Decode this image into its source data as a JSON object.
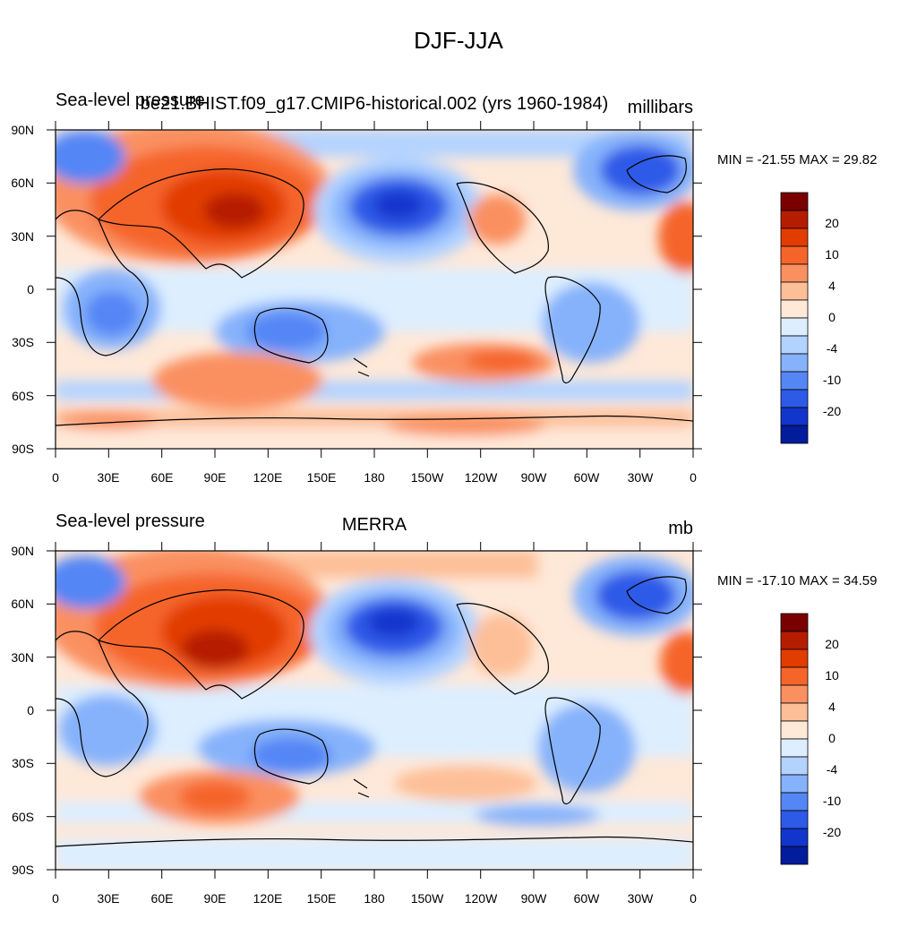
{
  "figure": {
    "title": "DJF-JJA"
  },
  "colorbar": {
    "colors": [
      "#7a0000",
      "#b51d00",
      "#e23c00",
      "#f5652a",
      "#fa9060",
      "#fdbf98",
      "#fee8d8",
      "#dceeff",
      "#b3d3ff",
      "#86b2fb",
      "#5586f5",
      "#2e5ae8",
      "#1236cc",
      "#021c9b"
    ],
    "labels": [
      "20",
      "10",
      "4",
      "0",
      "-4",
      "-10",
      "-20"
    ]
  },
  "axes": {
    "lat_labels": [
      "90N",
      "60N",
      "30N",
      "0",
      "30S",
      "60S",
      "90S"
    ],
    "lon_labels": [
      "0",
      "30E",
      "60E",
      "90E",
      "120E",
      "150E",
      "180",
      "150W",
      "120W",
      "90W",
      "60W",
      "30W",
      "0"
    ]
  },
  "panels": [
    {
      "left_label": "Sea-level pressure",
      "center_label": "be21.BHIST.f09_g17.CMIP6-historical.002 (yrs 1960-1984)",
      "right_label": "millibars",
      "minmax": "MIN = -21.55 MAX =  29.82",
      "field_summary": {
        "min": -21.55,
        "max": 29.82,
        "features": [
          {
            "region": "Asia (Siberian high)",
            "value": 24
          },
          {
            "region": "North Pacific (Aleutian low)",
            "value": -16
          },
          {
            "region": "North Atlantic (Icelandic low)",
            "value": -12
          },
          {
            "region": "Australia",
            "value": -8
          },
          {
            "region": "Southern Indian Ocean",
            "value": 8
          },
          {
            "region": "Southern Africa",
            "value": -6
          },
          {
            "region": "North America (west)",
            "value": 6
          }
        ]
      }
    },
    {
      "left_label": "Sea-level pressure",
      "center_label": "MERRA",
      "right_label": "mb",
      "minmax": "MIN = -17.10 MAX =  34.59",
      "field_summary": {
        "min": -17.1,
        "max": 34.59,
        "features": [
          {
            "region": "Asia (Siberian high)",
            "value": 26
          },
          {
            "region": "North Pacific (Aleutian low)",
            "value": -16
          },
          {
            "region": "North Atlantic (Icelandic low)",
            "value": -12
          },
          {
            "region": "Australia",
            "value": -8
          },
          {
            "region": "Southern Indian Ocean",
            "value": 8
          },
          {
            "region": "Southern Africa",
            "value": -6
          },
          {
            "region": "North America (west)",
            "value": 5
          }
        ]
      }
    }
  ]
}
